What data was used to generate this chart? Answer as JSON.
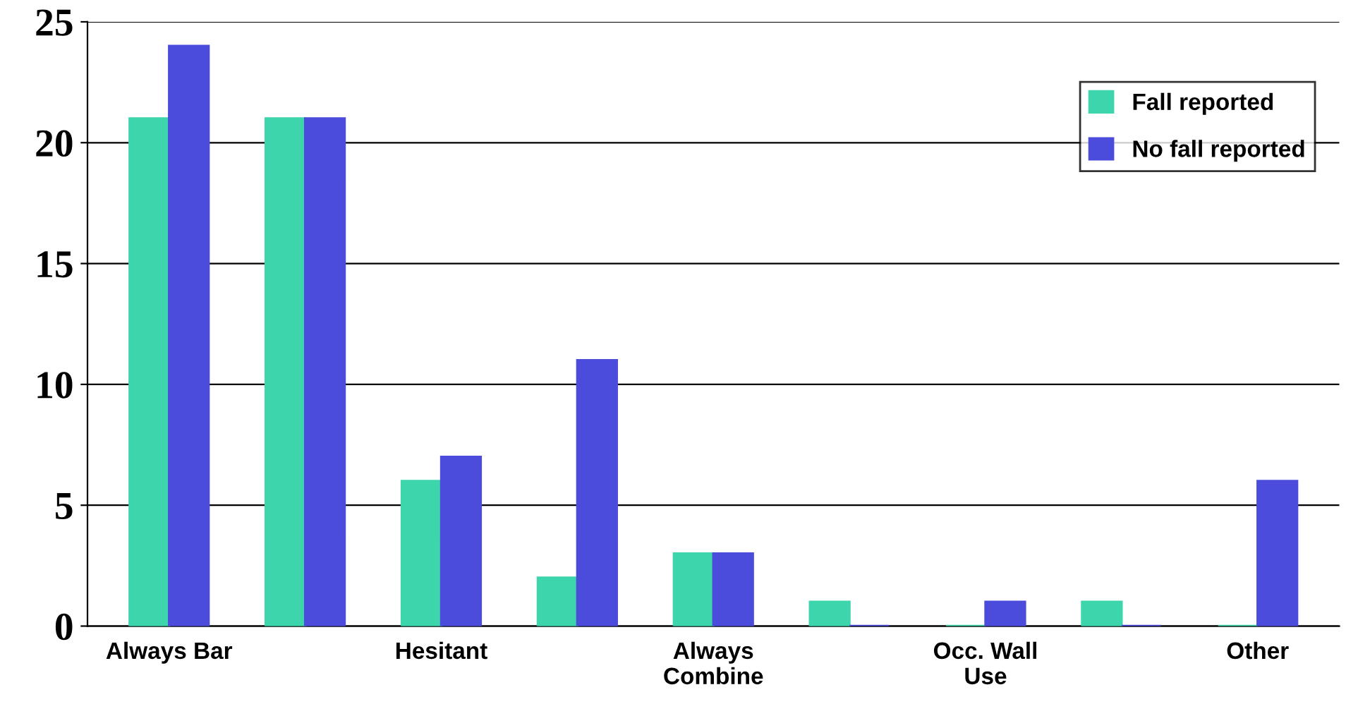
{
  "chart_data": {
    "type": "bar",
    "categories": [
      "Always Bar",
      null,
      "Hesitant",
      null,
      "Always\nCombine",
      null,
      "Occ. Wall\nUse",
      null,
      "Other"
    ],
    "series": [
      {
        "name": "Fall reported",
        "color": "#3dd6ac",
        "values": [
          21,
          21,
          6,
          2,
          3,
          1,
          0,
          1,
          0
        ]
      },
      {
        "name": "No fall reported",
        "color": "#4b4bdc",
        "values": [
          24,
          21,
          7,
          11,
          3,
          0,
          1,
          0,
          6
        ]
      }
    ],
    "ylim": [
      0,
      25
    ],
    "yticks": [
      0,
      5,
      10,
      15,
      20,
      25
    ],
    "grid": "y",
    "legend": "top right"
  }
}
